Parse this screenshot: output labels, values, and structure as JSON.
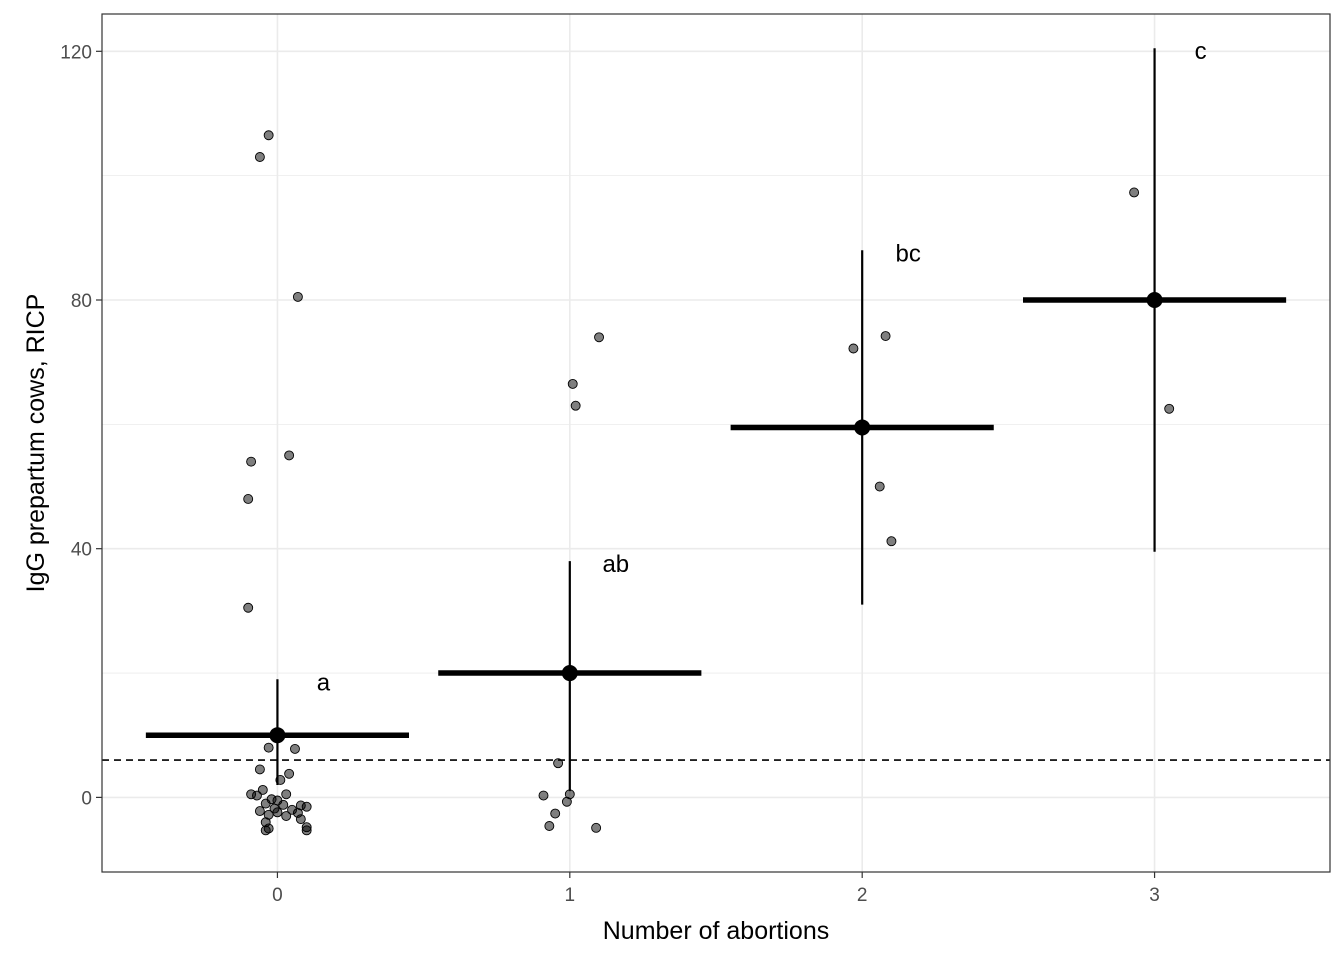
{
  "chart_data": {
    "type": "scatter",
    "title": "",
    "xlabel": "Number of abortions",
    "ylabel": "IgG prepartum cows, RICP",
    "x_categories": [
      "0",
      "1",
      "2",
      "3"
    ],
    "xlim": [
      -0.6,
      3.6
    ],
    "ylim": [
      -12,
      126
    ],
    "y_ticks": [
      0,
      40,
      80,
      120
    ],
    "grid": true,
    "reference_line": {
      "y": 6,
      "style": "dashed"
    },
    "colors": {
      "points": "#000000",
      "summary": "#000000",
      "grid": "#ebebeb",
      "panel_border": "#333333"
    },
    "summary": [
      {
        "x": 0,
        "mean": 10,
        "ci_low": 2,
        "ci_high": 19,
        "letter": "a"
      },
      {
        "x": 1,
        "mean": 20,
        "ci_low": 1,
        "ci_high": 38,
        "letter": "ab"
      },
      {
        "x": 2,
        "mean": 59.5,
        "ci_low": 31,
        "ci_high": 88,
        "letter": "bc"
      },
      {
        "x": 3,
        "mean": 80,
        "ci_low": 39.5,
        "ci_high": 120.5,
        "letter": "c"
      }
    ],
    "points": [
      {
        "x": -0.03,
        "y": 106.5
      },
      {
        "x": -0.06,
        "y": 103
      },
      {
        "x": 0.07,
        "y": 80.5
      },
      {
        "x": 0.04,
        "y": 55
      },
      {
        "x": -0.09,
        "y": 54
      },
      {
        "x": -0.1,
        "y": 48
      },
      {
        "x": -0.1,
        "y": 30.5
      },
      {
        "x": -0.03,
        "y": 8
      },
      {
        "x": 0.06,
        "y": 7.8
      },
      {
        "x": -0.06,
        "y": 4.5
      },
      {
        "x": 0.04,
        "y": 3.8
      },
      {
        "x": 0.01,
        "y": 2.8
      },
      {
        "x": -0.05,
        "y": 1.2
      },
      {
        "x": -0.09,
        "y": 0.5
      },
      {
        "x": -0.07,
        "y": 0.3
      },
      {
        "x": 0.03,
        "y": 0.5
      },
      {
        "x": -0.02,
        "y": -0.3
      },
      {
        "x": 0.0,
        "y": -0.5
      },
      {
        "x": -0.04,
        "y": -1.0
      },
      {
        "x": 0.02,
        "y": -1.2
      },
      {
        "x": 0.08,
        "y": -1.3
      },
      {
        "x": 0.1,
        "y": -1.5
      },
      {
        "x": -0.01,
        "y": -1.8
      },
      {
        "x": 0.05,
        "y": -2.0
      },
      {
        "x": -0.06,
        "y": -2.2
      },
      {
        "x": 0.0,
        "y": -2.4
      },
      {
        "x": 0.07,
        "y": -2.5
      },
      {
        "x": -0.03,
        "y": -2.8
      },
      {
        "x": 0.03,
        "y": -3.0
      },
      {
        "x": 0.08,
        "y": -3.5
      },
      {
        "x": -0.04,
        "y": -4.0
      },
      {
        "x": 0.1,
        "y": -4.8
      },
      {
        "x": -0.03,
        "y": -5.0
      },
      {
        "x": 0.1,
        "y": -5.3
      },
      {
        "x": -0.04,
        "y": -5.3
      },
      {
        "x": 1.1,
        "y": 74
      },
      {
        "x": 1.01,
        "y": 66.5
      },
      {
        "x": 1.02,
        "y": 63
      },
      {
        "x": 0.96,
        "y": 5.5
      },
      {
        "x": 0.91,
        "y": 0.3
      },
      {
        "x": 1.0,
        "y": 0.5
      },
      {
        "x": 0.99,
        "y": -0.7
      },
      {
        "x": 0.95,
        "y": -2.6
      },
      {
        "x": 0.93,
        "y": -4.6
      },
      {
        "x": 1.09,
        "y": -4.9
      },
      {
        "x": 2.08,
        "y": 74.2
      },
      {
        "x": 1.97,
        "y": 72.2
      },
      {
        "x": 2.06,
        "y": 50
      },
      {
        "x": 2.1,
        "y": 41.2
      },
      {
        "x": 2.93,
        "y": 97.3
      },
      {
        "x": 3.05,
        "y": 62.5
      }
    ]
  }
}
